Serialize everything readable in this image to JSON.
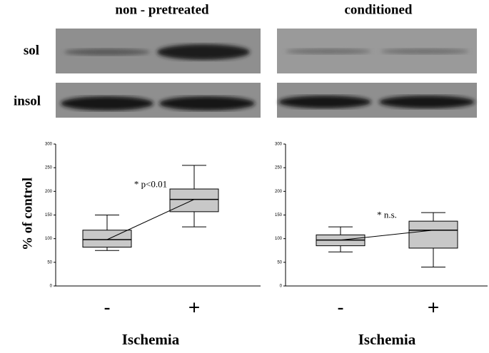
{
  "headers": [
    "non - pretreated",
    "conditioned"
  ],
  "blot_labels": [
    "sol",
    "insol"
  ],
  "chart_data": [
    {
      "type": "box",
      "y_label": "% of control",
      "x_label": "Ischemia",
      "annotation": "* p<0.01",
      "categories": [
        "-",
        "+"
      ],
      "color": "#c8c8c8",
      "boxes": [
        {
          "min": 75,
          "q1": 82,
          "median": 98,
          "q3": 118,
          "max": 150
        },
        {
          "min": 125,
          "q1": 157,
          "median": 183,
          "q3": 205,
          "max": 255
        }
      ],
      "ylim": [
        0,
        300
      ],
      "yticks": [
        0,
        50,
        100,
        150,
        200,
        250,
        300
      ]
    },
    {
      "type": "box",
      "x_label": "Ischemia",
      "annotation": "* n.s.",
      "categories": [
        "-",
        "+"
      ],
      "color": "#c8c8c8",
      "boxes": [
        {
          "min": 72,
          "q1": 85,
          "median": 97,
          "q3": 108,
          "max": 125
        },
        {
          "min": 40,
          "q1": 80,
          "median": 118,
          "q3": 137,
          "max": 155
        }
      ],
      "ylim": [
        0,
        300
      ],
      "yticks": [
        0,
        50,
        100,
        150,
        200,
        250,
        300
      ]
    }
  ]
}
